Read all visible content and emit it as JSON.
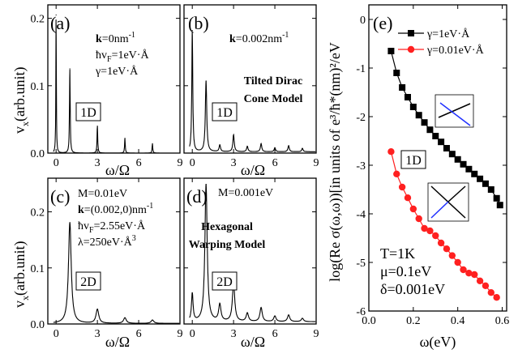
{
  "figure_labels": {
    "left_ylabel": "v",
    "left_ylabel_sub": "x",
    "left_ylabel_rest": "(arb.unit)",
    "omega_xlabel": "ω/Ω"
  },
  "chart_data": [
    {
      "id": "a",
      "type": "line",
      "panel_label": "(a)",
      "xlabel": "ω/Ω",
      "ylabel": "v_x(arb.unit)",
      "xlim": [
        -0.6,
        9
      ],
      "ylim": [
        0,
        0.22
      ],
      "xticks": [
        0,
        3,
        6,
        9
      ],
      "yticks": [
        0.0,
        0.1,
        0.2
      ],
      "xtick_labels": [
        "0",
        "3",
        "6",
        "9"
      ],
      "ytick_labels": [
        "0.0",
        "0.1",
        "0.2"
      ],
      "annotations": [
        "k=0nm⁻¹",
        "ħv_F=1eV·Å",
        "γ=1eV·Å"
      ],
      "info_lines": [
        {
          "b": "k",
          "t": "=0nm"
        },
        {
          "pre": "ħv",
          "sub": "F",
          "t": "=1eV·Å"
        },
        {
          "t": "γ=1eV·Å"
        }
      ],
      "info_sup": "-1",
      "dimension": "1D",
      "peaks": [
        {
          "x": 0,
          "h": 0.205
        },
        {
          "x": 1,
          "h": 0.125
        },
        {
          "x": 3,
          "h": 0.04
        },
        {
          "x": 5,
          "h": 0.022
        },
        {
          "x": 7,
          "h": 0.014
        }
      ],
      "peak_width": 0.03,
      "baseline": 0.0
    },
    {
      "id": "b",
      "type": "line",
      "panel_label": "(b)",
      "xlabel": "ω/Ω",
      "ylabel": "v_x(arb.unit)",
      "xlim": [
        -0.6,
        9
      ],
      "ylim": [
        0,
        0.22
      ],
      "xticks": [
        0,
        3,
        6,
        9
      ],
      "yticks": [
        0.0,
        0.1,
        0.2
      ],
      "xtick_labels": [
        "0",
        "3",
        "6",
        "9"
      ],
      "ytick_labels": [
        "0.0",
        "0.1",
        "0.2"
      ],
      "annotations": [
        "k=0.002nm⁻¹"
      ],
      "info_lines": [
        {
          "b": "k",
          "t": "=0.002nm"
        }
      ],
      "info_sup": "-1",
      "model_lines": [
        "Tilted Dirac",
        "Cone Model"
      ],
      "dimension": "1D",
      "peaks": [
        {
          "x": 0,
          "h": 0.18
        },
        {
          "x": 1,
          "h": 0.105
        },
        {
          "x": 2,
          "h": 0.01
        },
        {
          "x": 3,
          "h": 0.025
        },
        {
          "x": 4,
          "h": 0.008
        },
        {
          "x": 5,
          "h": 0.012
        },
        {
          "x": 6,
          "h": 0.006
        },
        {
          "x": 7,
          "h": 0.009
        },
        {
          "x": 8,
          "h": 0.005
        }
      ],
      "peak_width": 0.06,
      "baseline": 0.002
    },
    {
      "id": "c",
      "type": "line",
      "panel_label": "(c)",
      "xlabel": "ω/Ω",
      "ylabel": "v_x(arb.unit)",
      "xlim": [
        -0.6,
        9
      ],
      "ylim": [
        0,
        0.26
      ],
      "xticks": [
        0,
        3,
        6,
        9
      ],
      "yticks": [
        0.0,
        0.1,
        0.2
      ],
      "xtick_labels": [
        "0",
        "3",
        "6",
        "9"
      ],
      "ytick_labels": [
        "0.0",
        "0.1",
        "0.2"
      ],
      "annotations": [
        "M=0.01eV",
        "k=(0.002,0)nm⁻¹",
        "ħv_F=2.55eV·Å",
        "λ=250eV·Å³"
      ],
      "info_lines": [
        {
          "t": "M=0.01eV"
        },
        {
          "b": "k",
          "t": "=(0.002,0)nm"
        },
        {
          "pre": "ħv",
          "sub": "F",
          "t": "=2.55eV·Å"
        },
        {
          "t": "λ=250eV·Å"
        }
      ],
      "info_sup": "-1",
      "info_sup3": "3",
      "dimension": "2D",
      "peaks": [
        {
          "x": 1,
          "h": 0.18
        },
        {
          "x": 3,
          "h": 0.025
        },
        {
          "x": 5,
          "h": 0.01
        },
        {
          "x": 7,
          "h": 0.006
        }
      ],
      "peak_width": 0.12,
      "baseline": 0.001
    },
    {
      "id": "d",
      "type": "line",
      "panel_label": "(d)",
      "xlabel": "ω/Ω",
      "ylabel": "v_x(arb.unit)",
      "xlim": [
        -0.6,
        9
      ],
      "ylim": [
        0,
        0.26
      ],
      "xticks": [
        0,
        3,
        6,
        9
      ],
      "yticks": [
        0.0,
        0.1,
        0.2
      ],
      "xtick_labels": [
        "0",
        "3",
        "6",
        "9"
      ],
      "ytick_labels": [
        "0.0",
        "0.1",
        "0.2"
      ],
      "annotations": [
        "M=0.001eV"
      ],
      "info_lines": [
        {
          "t": "M=0.001eV"
        }
      ],
      "model_lines": [
        "Hexagonal",
        "Warping Model"
      ],
      "dimension": "2D",
      "peaks": [
        {
          "x": 0,
          "h": 0.05
        },
        {
          "x": 1,
          "h": 0.245
        },
        {
          "x": 2,
          "h": 0.03
        },
        {
          "x": 3,
          "h": 0.07
        },
        {
          "x": 4,
          "h": 0.015
        },
        {
          "x": 5,
          "h": 0.025
        },
        {
          "x": 6,
          "h": 0.01
        },
        {
          "x": 7,
          "h": 0.012
        },
        {
          "x": 8,
          "h": 0.006
        }
      ],
      "peak_width": 0.1,
      "baseline": 0.004
    },
    {
      "id": "e",
      "type": "line",
      "panel_label": "(e)",
      "xlabel": "ω(eV)",
      "ylabel": "log(Re σ(ω,ω))[in units of e³/ħ*(nm)²/eV",
      "xlim": [
        0.0,
        0.62
      ],
      "ylim": [
        -6,
        0.3
      ],
      "xticks": [
        0.0,
        0.2,
        0.4,
        0.6
      ],
      "yticks": [
        -6,
        -5,
        -4,
        -3,
        -2,
        -1,
        0
      ],
      "xtick_labels": [
        "0.0",
        "0.2",
        "0.4",
        "0.6"
      ],
      "ytick_labels": [
        "-6",
        "-5",
        "-4",
        "-3",
        "-2",
        "-1",
        "0"
      ],
      "series": [
        {
          "name": "γ=1eV·Å",
          "color": "#000000",
          "marker": "square",
          "x": [
            0.1,
            0.125,
            0.15,
            0.175,
            0.2,
            0.225,
            0.25,
            0.275,
            0.3,
            0.325,
            0.35,
            0.375,
            0.4,
            0.425,
            0.45,
            0.475,
            0.5,
            0.525,
            0.55,
            0.575,
            0.59
          ],
          "y": [
            -0.65,
            -1.1,
            -1.4,
            -1.6,
            -1.8,
            -1.97,
            -2.12,
            -2.27,
            -2.4,
            -2.52,
            -2.65,
            -2.77,
            -2.88,
            -2.98,
            -3.08,
            -3.18,
            -3.28,
            -3.38,
            -3.5,
            -3.68,
            -3.82
          ]
        },
        {
          "name": "γ=0.01eV·Å",
          "color": "#ff2020",
          "marker": "circle",
          "x": [
            0.1,
            0.125,
            0.15,
            0.175,
            0.2,
            0.225,
            0.25,
            0.275,
            0.3,
            0.325,
            0.35,
            0.375,
            0.4,
            0.425,
            0.45,
            0.475,
            0.5,
            0.525,
            0.55,
            0.575
          ],
          "y": [
            -2.72,
            -3.18,
            -3.45,
            -3.67,
            -3.9,
            -4.1,
            -4.3,
            -4.35,
            -4.45,
            -4.6,
            -4.72,
            -4.86,
            -5.0,
            -5.15,
            -5.22,
            -5.25,
            -5.38,
            -5.48,
            -5.62,
            -5.72
          ]
        }
      ],
      "legend": {
        "position": "top-right",
        "entries": [
          "γ=1eV·Å",
          "γ=0.01eV·Å"
        ]
      },
      "params": [
        "T=1K",
        "μ=0.1eV",
        "δ=0.001eV"
      ],
      "dimension": "1D"
    }
  ]
}
